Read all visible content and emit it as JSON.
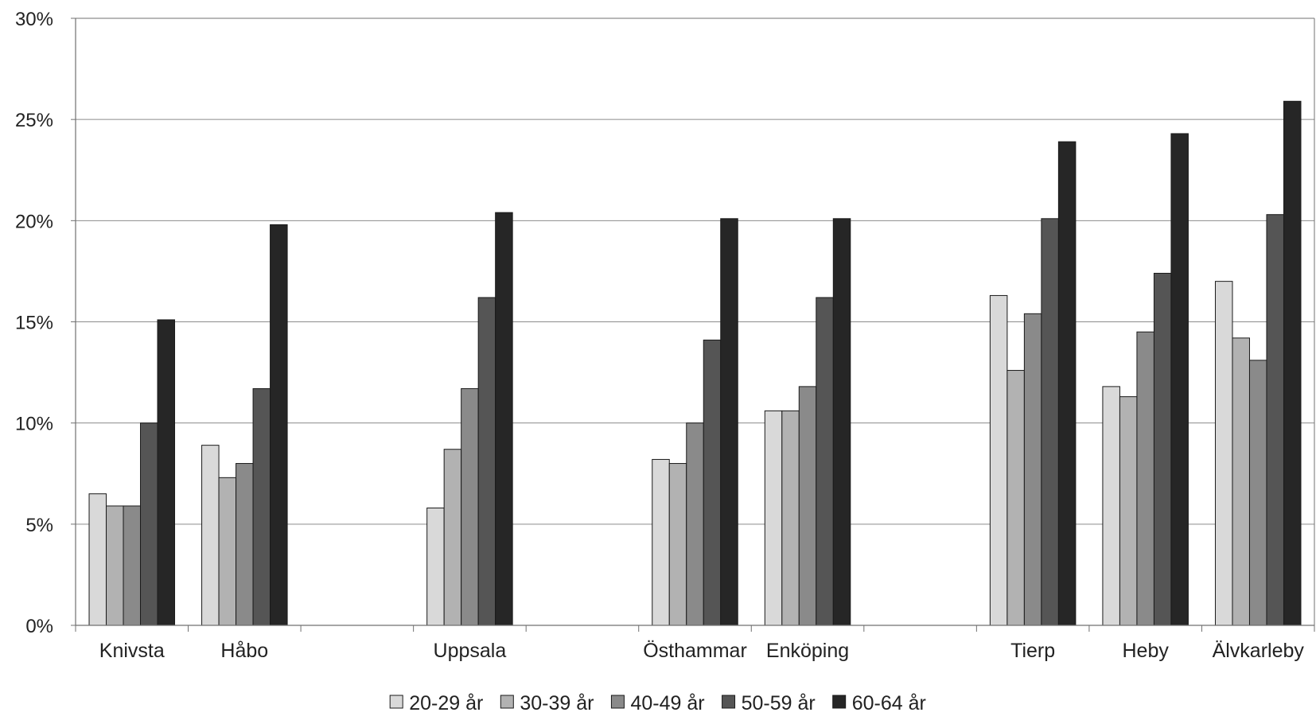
{
  "chart_data": {
    "type": "bar",
    "title": "",
    "xlabel": "",
    "ylabel": "",
    "ylim": [
      0,
      30
    ],
    "yticks": [
      "0%",
      "5%",
      "10%",
      "15%",
      "20%",
      "25%",
      "30%"
    ],
    "grid": true,
    "legend_position": "bottom",
    "categories": [
      "Knivsta",
      "Håbo",
      "",
      "Uppsala",
      "",
      "Östhammar",
      "Enköping",
      "",
      "Tierp",
      "Heby",
      "Älvkarleby"
    ],
    "series": [
      {
        "name": "20-29 år",
        "color": "#d9d9d9",
        "values": [
          6.5,
          8.9,
          null,
          5.8,
          null,
          8.2,
          10.6,
          null,
          16.3,
          11.8,
          17.0
        ]
      },
      {
        "name": "30-39 år",
        "color": "#b2b2b2",
        "values": [
          5.9,
          7.3,
          null,
          8.7,
          null,
          8.0,
          10.6,
          null,
          12.6,
          11.3,
          14.2
        ]
      },
      {
        "name": "40-49 år",
        "color": "#8a8a8a",
        "values": [
          5.9,
          8.0,
          null,
          11.7,
          null,
          10.0,
          11.8,
          null,
          15.4,
          14.5,
          13.1
        ]
      },
      {
        "name": "50-59 år",
        "color": "#555555",
        "values": [
          10.0,
          11.7,
          null,
          16.2,
          null,
          14.1,
          16.2,
          null,
          20.1,
          17.4,
          20.3
        ]
      },
      {
        "name": "60-64 år",
        "color": "#262626",
        "values": [
          15.1,
          19.8,
          null,
          20.4,
          null,
          20.1,
          20.1,
          null,
          23.9,
          24.3,
          25.9
        ]
      }
    ]
  }
}
